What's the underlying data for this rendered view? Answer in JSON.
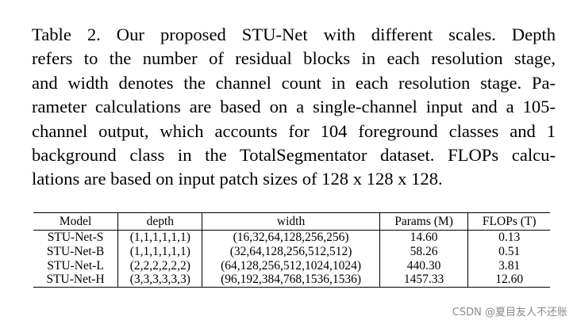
{
  "caption": {
    "lines": [
      "Table 2.  Our proposed STU-Net with different scales.  Depth",
      "refers to the number of residual blocks in each resolution stage,",
      "and width denotes the channel count in each resolution stage. Pa-",
      "rameter calculations are based on a single-channel input and a 105-",
      "channel output, which accounts for 104 foreground classes and 1",
      "background class in the TotalSegmentator dataset. FLOPs calcu-",
      "lations are based on input patch sizes of 128 x 128 x 128."
    ]
  },
  "table": {
    "headers": [
      "Model",
      "depth",
      "width",
      "Params (M)",
      "FLOPs (T)"
    ],
    "rows": [
      [
        "STU-Net-S",
        "(1,1,1,1,1,1)",
        "(16,32,64,128,256,256)",
        "14.60",
        "0.13"
      ],
      [
        "STU-Net-B",
        "(1,1,1,1,1,1)",
        "(32,64,128,256,512,512)",
        "58.26",
        "0.51"
      ],
      [
        "STU-Net-L",
        "(2,2,2,2,2,2)",
        "(64,128,256,512,1024,1024)",
        "440.30",
        "3.81"
      ],
      [
        "STU-Net-H",
        "(3,3,3,3,3,3)",
        "(96,192,384,768,1536,1536)",
        "1457.33",
        "12.60"
      ]
    ]
  },
  "watermark": "CSDN @夏目友人不还账"
}
